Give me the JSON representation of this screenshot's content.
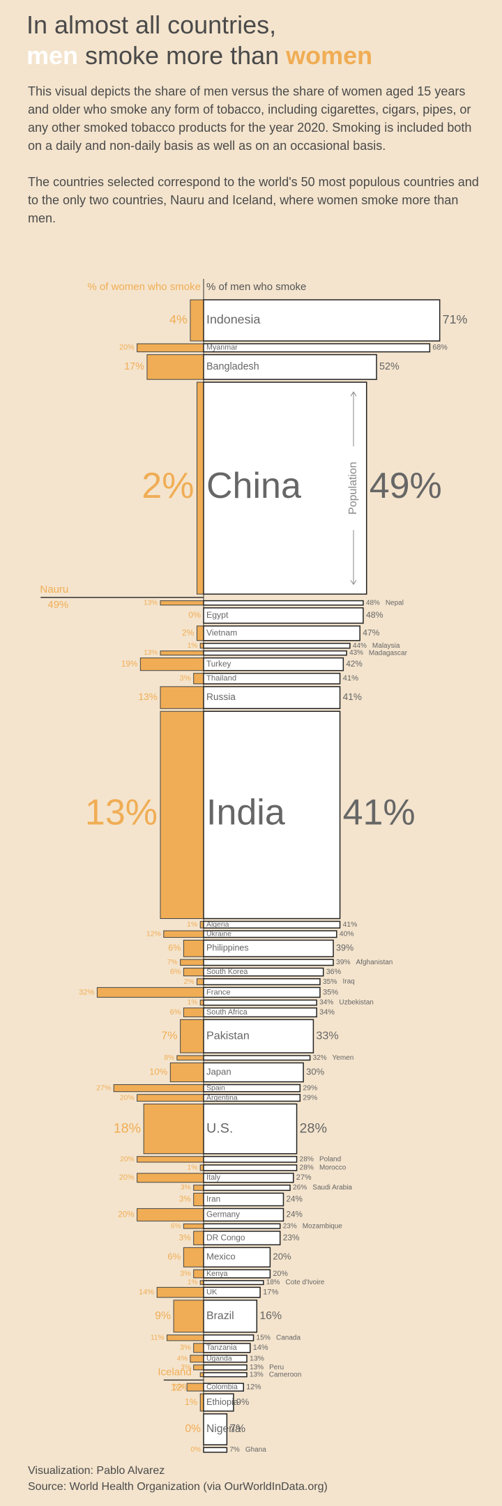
{
  "chart_data": {
    "type": "butterfly",
    "title": "In almost all countries,",
    "title_line2": [
      "men",
      " smoke more than ",
      "women"
    ],
    "description": [
      "This visual depicts the share of men versus the share of women aged 15 years and older who smoke any form of tobacco, including cigarettes, cigars, pipes, or any other smoked tobacco products for the year 2020. Smoking is included both on a daily and non-daily basis as well as on an occasional basis.",
      "The countries selected correspond to the world's 50 most populous countries and to the only two countries, Nauru and Iceland, where women smoke more than men."
    ],
    "population_label": "Population",
    "footer": [
      "Visualization: Pablo Alvarez",
      "Source: World Health Organization (via OurWorldInData.org)"
    ],
    "categories": [
      "Indonesia",
      "Myanmar",
      "Bangladesh",
      "China",
      "Nauru",
      "Nepal",
      "Egypt",
      "Vietnam",
      "Malaysia",
      "Madagascar",
      "Turkey",
      "Thailand",
      "Russia",
      "India",
      "Algeria",
      "Ukraine",
      "Philippines",
      "Afghanistan",
      "South Korea",
      "Iraq",
      "France",
      "Uzbekistan",
      "South Africa",
      "Pakistan",
      "Yemen",
      "Japan",
      "Spain",
      "Argentina",
      "U.S.",
      "Poland",
      "Morocco",
      "Italy",
      "Saudi Arabia",
      "Iran",
      "Germany",
      "Mozambique",
      "DR Congo",
      "Mexico",
      "Kenya",
      "Cote d'Ivoire",
      "UK",
      "Brazil",
      "Canada",
      "Tanzania",
      "Uganda",
      "Peru",
      "Cameroon",
      "Iceland",
      "Colombia",
      "Ethiopia",
      "Nigeria",
      "Ghana"
    ],
    "population": [
      274,
      54,
      165,
      1411,
      0.011,
      29,
      102,
      97,
      32,
      28,
      84,
      70,
      146,
      1380,
      44,
      44,
      110,
      39,
      52,
      40,
      65,
      34,
      59,
      221,
      30,
      126,
      47,
      45,
      331,
      38,
      37,
      60,
      35,
      84,
      83,
      31,
      90,
      129,
      54,
      26,
      67,
      213,
      38,
      60,
      46,
      33,
      27,
      0.37,
      51,
      115,
      206,
      31
    ],
    "series": [
      {
        "name": "% of women who smoke",
        "color": "#f0ad55",
        "values": [
          4,
          20,
          17,
          2,
          49,
          13,
          0,
          2,
          1,
          13,
          19,
          3,
          13,
          13,
          1,
          12,
          6,
          7,
          6,
          2,
          32,
          1,
          6,
          7,
          8,
          10,
          27,
          20,
          18,
          20,
          1,
          20,
          3,
          3,
          20,
          6,
          3,
          6,
          3,
          1,
          14,
          9,
          11,
          3,
          4,
          3,
          1,
          12,
          5,
          1,
          0,
          0
        ],
        "value_labels": [
          "4%",
          "20%",
          "17%",
          "2%",
          "49%",
          "13%",
          "0%",
          "2%",
          "1%",
          "13%",
          "19%",
          "3%",
          "13%",
          "13%",
          "1%",
          "12%",
          "6%",
          "7%",
          "6%",
          "2%",
          "32%",
          "1%",
          "6%",
          "7%",
          "8%",
          "10%",
          "27%",
          "20%",
          "18%",
          "20%",
          "1%",
          "20%",
          "3%",
          "3%",
          "20%",
          "6%",
          "3%",
          "6%",
          "3%",
          "1%",
          "14%",
          "9%",
          "11%",
          "3%",
          "4%",
          "3%",
          null,
          "12%",
          "5%",
          "1%",
          "0%",
          "0%"
        ]
      },
      {
        "name": "% of men who smoke",
        "color": "#ffffff",
        "values": [
          71,
          68,
          52,
          49,
          null,
          48,
          48,
          47,
          44,
          43,
          42,
          41,
          41,
          41,
          41,
          40,
          39,
          39,
          36,
          35,
          35,
          34,
          34,
          33,
          32,
          30,
          29,
          29,
          28,
          28,
          28,
          27,
          26,
          24,
          24,
          23,
          23,
          20,
          20,
          18,
          17,
          16,
          15,
          14,
          13,
          13,
          13,
          null,
          12,
          9,
          7,
          7
        ],
        "value_labels": [
          "71%",
          "68%",
          "52%",
          "49%",
          null,
          "48%",
          "48%",
          "47%",
          "44%",
          "43%",
          "42%",
          "41%",
          "41%",
          "41%",
          "41%",
          "40%",
          "39%",
          "39%",
          "36%",
          "35%",
          "35%",
          "34%",
          "34%",
          "33%",
          "32%",
          "30%",
          "29%",
          "29%",
          "28%",
          "28%",
          "28%",
          "27%",
          "26%",
          "24%",
          "24%",
          "23%",
          "23%",
          "20%",
          "20%",
          "18%",
          "17%",
          "16%",
          "15%",
          "14%",
          "13%",
          "13%",
          "13%",
          null,
          "12%",
          "9%",
          "7%",
          "7%"
        ]
      }
    ]
  }
}
